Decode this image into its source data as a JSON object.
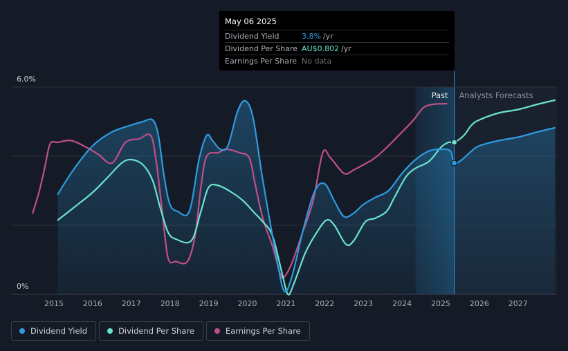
{
  "tooltip": {
    "date": "May 06 2025",
    "rows": [
      {
        "label": "Dividend Yield",
        "value": "3.8%",
        "suffix": "/yr",
        "color": "#2e9be0"
      },
      {
        "label": "Dividend Per Share",
        "value": "AU$0.802",
        "suffix": "/yr",
        "color": "#6be4cd"
      },
      {
        "label": "Earnings Per Share",
        "value": "No data",
        "suffix": "",
        "color": "#6b717a"
      }
    ]
  },
  "region_labels": {
    "past": "Past",
    "forecast": "Analysts Forecasts"
  },
  "legend": [
    {
      "label": "Dividend Yield",
      "color": "#2e9be0"
    },
    {
      "label": "Dividend Per Share",
      "color": "#6be4cd"
    },
    {
      "label": "Earnings Per Share",
      "color": "#c0508a"
    }
  ],
  "chart_data": {
    "type": "line",
    "y_ticks": [
      "6.0%",
      "0%"
    ],
    "ylim": [
      0,
      6.0
    ],
    "xlim": [
      2014.45,
      2027.95
    ],
    "x_ticks": [
      "2015",
      "2016",
      "2017",
      "2018",
      "2019",
      "2020",
      "2021",
      "2022",
      "2023",
      "2024",
      "2025",
      "2026",
      "2027"
    ],
    "gridlines_y": [
      0,
      2.0,
      4.0,
      6.0
    ],
    "past_start": 2024.35,
    "today": 2025.35,
    "series": [
      {
        "name": "Dividend Yield",
        "color": "#2e9be0",
        "points": [
          [
            2015.1,
            2.9
          ],
          [
            2015.5,
            3.6
          ],
          [
            2016.0,
            4.3
          ],
          [
            2016.5,
            4.7
          ],
          [
            2017.0,
            4.9
          ],
          [
            2017.3,
            5.0
          ],
          [
            2017.55,
            5.05
          ],
          [
            2017.7,
            4.6
          ],
          [
            2017.85,
            3.4
          ],
          [
            2018.0,
            2.6
          ],
          [
            2018.2,
            2.4
          ],
          [
            2018.5,
            2.4
          ],
          [
            2018.75,
            3.9
          ],
          [
            2018.95,
            4.6
          ],
          [
            2019.1,
            4.45
          ],
          [
            2019.3,
            4.2
          ],
          [
            2019.5,
            4.3
          ],
          [
            2019.75,
            5.3
          ],
          [
            2019.95,
            5.6
          ],
          [
            2020.15,
            5.1
          ],
          [
            2020.4,
            3.3
          ],
          [
            2020.75,
            1.1
          ],
          [
            2020.95,
            0.1
          ],
          [
            2021.15,
            0.5
          ],
          [
            2021.45,
            1.9
          ],
          [
            2021.75,
            3.0
          ],
          [
            2022.0,
            3.2
          ],
          [
            2022.25,
            2.7
          ],
          [
            2022.5,
            2.25
          ],
          [
            2022.75,
            2.35
          ],
          [
            2023.0,
            2.6
          ],
          [
            2023.3,
            2.8
          ],
          [
            2023.65,
            3.0
          ],
          [
            2024.0,
            3.5
          ],
          [
            2024.35,
            3.9
          ],
          [
            2024.7,
            4.15
          ],
          [
            2025.0,
            4.2
          ],
          [
            2025.25,
            4.15
          ],
          [
            2025.35,
            3.8
          ],
          [
            2025.55,
            3.9
          ],
          [
            2025.8,
            4.15
          ],
          [
            2026.0,
            4.3
          ],
          [
            2026.5,
            4.45
          ],
          [
            2027.0,
            4.55
          ],
          [
            2027.5,
            4.7
          ],
          [
            2027.95,
            4.82
          ]
        ]
      },
      {
        "name": "Dividend Per Share",
        "color": "#6be4cd",
        "points": [
          [
            2015.1,
            2.15
          ],
          [
            2015.5,
            2.5
          ],
          [
            2016.0,
            2.95
          ],
          [
            2016.4,
            3.4
          ],
          [
            2016.75,
            3.8
          ],
          [
            2017.0,
            3.9
          ],
          [
            2017.3,
            3.75
          ],
          [
            2017.55,
            3.3
          ],
          [
            2017.75,
            2.5
          ],
          [
            2017.95,
            1.8
          ],
          [
            2018.15,
            1.6
          ],
          [
            2018.55,
            1.55
          ],
          [
            2018.8,
            2.4
          ],
          [
            2019.0,
            3.1
          ],
          [
            2019.25,
            3.15
          ],
          [
            2019.6,
            2.95
          ],
          [
            2019.9,
            2.7
          ],
          [
            2020.15,
            2.4
          ],
          [
            2020.4,
            2.1
          ],
          [
            2020.65,
            1.7
          ],
          [
            2020.9,
            0.6
          ],
          [
            2021.05,
            0.0
          ],
          [
            2021.2,
            0.3
          ],
          [
            2021.5,
            1.2
          ],
          [
            2021.8,
            1.8
          ],
          [
            2022.05,
            2.15
          ],
          [
            2022.25,
            2.0
          ],
          [
            2022.55,
            1.45
          ],
          [
            2022.75,
            1.55
          ],
          [
            2023.05,
            2.1
          ],
          [
            2023.3,
            2.2
          ],
          [
            2023.6,
            2.4
          ],
          [
            2023.8,
            2.8
          ],
          [
            2024.1,
            3.4
          ],
          [
            2024.35,
            3.65
          ],
          [
            2024.7,
            3.85
          ],
          [
            2025.0,
            4.25
          ],
          [
            2025.2,
            4.4
          ],
          [
            2025.35,
            4.4
          ],
          [
            2025.6,
            4.6
          ],
          [
            2025.8,
            4.9
          ],
          [
            2026.0,
            5.05
          ],
          [
            2026.5,
            5.25
          ],
          [
            2027.0,
            5.35
          ],
          [
            2027.5,
            5.5
          ],
          [
            2027.95,
            5.62
          ]
        ]
      },
      {
        "name": "Earnings Per Share",
        "color": "#c0508a",
        "points": [
          [
            2014.45,
            2.35
          ],
          [
            2014.6,
            2.9
          ],
          [
            2014.75,
            3.6
          ],
          [
            2014.9,
            4.35
          ],
          [
            2015.1,
            4.4
          ],
          [
            2015.45,
            4.45
          ],
          [
            2015.85,
            4.25
          ],
          [
            2016.15,
            4.05
          ],
          [
            2016.5,
            3.8
          ],
          [
            2016.85,
            4.4
          ],
          [
            2017.2,
            4.5
          ],
          [
            2017.5,
            4.6
          ],
          [
            2017.65,
            3.8
          ],
          [
            2017.8,
            2.4
          ],
          [
            2017.95,
            1.05
          ],
          [
            2018.15,
            0.95
          ],
          [
            2018.45,
            0.95
          ],
          [
            2018.65,
            1.7
          ],
          [
            2018.8,
            3.1
          ],
          [
            2018.95,
            4.0
          ],
          [
            2019.25,
            4.1
          ],
          [
            2019.45,
            4.2
          ],
          [
            2019.8,
            4.1
          ],
          [
            2020.05,
            3.95
          ],
          [
            2020.2,
            3.2
          ],
          [
            2020.4,
            2.2
          ],
          [
            2020.65,
            1.4
          ],
          [
            2020.85,
            0.6
          ],
          [
            2020.95,
            0.5
          ],
          [
            2021.15,
            0.9
          ],
          [
            2021.4,
            1.7
          ],
          [
            2021.7,
            2.7
          ],
          [
            2021.95,
            4.1
          ],
          [
            2022.15,
            3.95
          ],
          [
            2022.5,
            3.5
          ],
          [
            2022.75,
            3.6
          ],
          [
            2023.0,
            3.75
          ],
          [
            2023.3,
            3.95
          ],
          [
            2023.65,
            4.3
          ],
          [
            2024.0,
            4.7
          ],
          [
            2024.3,
            5.05
          ],
          [
            2024.55,
            5.4
          ],
          [
            2024.8,
            5.5
          ],
          [
            2025.15,
            5.52
          ]
        ]
      }
    ],
    "markers": [
      {
        "series": "Dividend Yield",
        "x": 2025.35,
        "y": 3.8
      },
      {
        "series": "Dividend Per Share",
        "x": 2025.35,
        "y": 4.4
      }
    ]
  }
}
